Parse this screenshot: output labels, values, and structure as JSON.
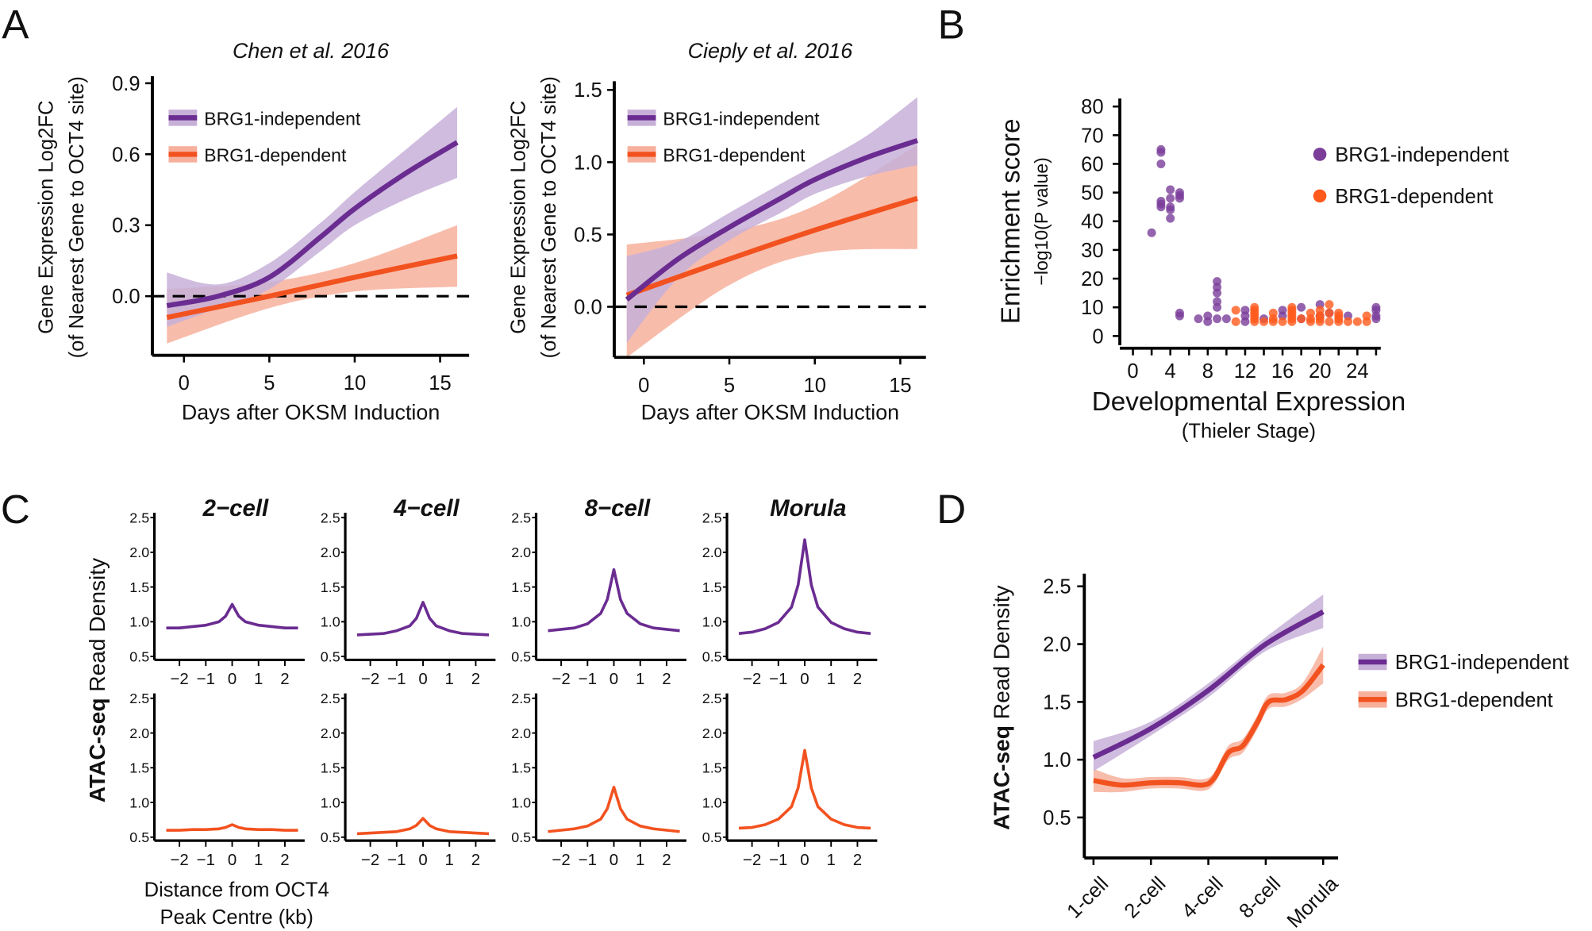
{
  "panel_letters": [
    "A",
    "B",
    "C",
    "D"
  ],
  "colors": {
    "independent": "#6a2c91",
    "independent_band": "#c7b0d8",
    "dependent": "#f2521f",
    "dependent_band": "#f7b09c",
    "independent_point": "#7a3d9a",
    "dependent_point": "#ff5a1c"
  },
  "chart_data": [
    {
      "id": "A-left",
      "type": "line",
      "title": "Chen et al. 2016",
      "xlabel": "Days after OKSM Induction",
      "ylabel": [
        "Gene Expression Log2FC",
        "(of Nearest Gene to OCT4 site)"
      ],
      "xticks": [
        0,
        5,
        10,
        15
      ],
      "yticks": [
        "0.0",
        "0.3",
        "0.6",
        "0.9"
      ],
      "xlim": [
        -1.85,
        16.7
      ],
      "ylim": [
        -0.25,
        0.93
      ],
      "reference_line": 0,
      "legend": "top-left",
      "series": [
        {
          "name": "BRG1-independent",
          "x": [
            -1,
            2,
            5,
            8,
            10,
            13,
            16
          ],
          "y": [
            -0.04,
            0.0,
            0.08,
            0.25,
            0.37,
            0.52,
            0.65
          ],
          "lower": [
            -0.13,
            -0.05,
            0.03,
            0.19,
            0.3,
            0.41,
            0.5
          ],
          "upper": [
            0.1,
            0.05,
            0.14,
            0.31,
            0.44,
            0.62,
            0.8
          ]
        },
        {
          "name": "BRG1-dependent",
          "x": [
            -1,
            5,
            10,
            16
          ],
          "y": [
            -0.09,
            0.0,
            0.08,
            0.17
          ],
          "lower": [
            -0.2,
            -0.05,
            0.02,
            0.04
          ],
          "upper": [
            0.03,
            0.06,
            0.14,
            0.3
          ]
        }
      ]
    },
    {
      "id": "A-right",
      "type": "line",
      "title": "Cieply et al. 2016",
      "xlabel": "Days after OKSM Induction",
      "ylabel": [
        "Gene Expression Log2FC",
        "(of Nearest Gene to OCT4 site)"
      ],
      "xticks": [
        0,
        5,
        10,
        15
      ],
      "yticks": [
        "0.0",
        "0.5",
        "1.0",
        "1.5"
      ],
      "xlim": [
        -1.73,
        16.5
      ],
      "ylim": [
        -0.35,
        1.56
      ],
      "reference_line": 0,
      "legend": "top-left",
      "series": [
        {
          "name": "BRG1-independent",
          "x": [
            -1,
            2,
            5,
            8,
            10,
            13,
            16
          ],
          "y": [
            0.05,
            0.33,
            0.55,
            0.75,
            0.88,
            1.03,
            1.15
          ],
          "lower": [
            -0.25,
            0.2,
            0.46,
            0.65,
            0.78,
            0.9,
            0.98
          ],
          "upper": [
            0.35,
            0.45,
            0.65,
            0.85,
            0.98,
            1.18,
            1.45
          ]
        },
        {
          "name": "BRG1-dependent",
          "x": [
            -1,
            5,
            10,
            16
          ],
          "y": [
            0.08,
            0.33,
            0.53,
            0.75
          ],
          "lower": [
            -0.35,
            0.15,
            0.37,
            0.4
          ],
          "upper": [
            0.43,
            0.52,
            0.7,
            1.12
          ]
        }
      ]
    },
    {
      "id": "B",
      "type": "scatter",
      "xlabel": "Developmental Expression",
      "xlabel_sub": "(Thieler Stage)",
      "ylabel": "Enrichment score",
      "ylabel_sub": "−log10(P value)",
      "xticks": [
        0,
        4,
        8,
        12,
        16,
        20,
        24
      ],
      "yticks": [
        0,
        10,
        20,
        30,
        40,
        50,
        60,
        70,
        80
      ],
      "xlim": [
        -1.4,
        26.5
      ],
      "ylim": [
        -3.2,
        82.8
      ],
      "legend": "right",
      "series": [
        {
          "name": "BRG1-independent",
          "points": [
            [
              2,
              36
            ],
            [
              3,
              65
            ],
            [
              3,
              64
            ],
            [
              3,
              60
            ],
            [
              3,
              47
            ],
            [
              3,
              46
            ],
            [
              3,
              45
            ],
            [
              4,
              51
            ],
            [
              4,
              48
            ],
            [
              4,
              45
            ],
            [
              4,
              44
            ],
            [
              4,
              41
            ],
            [
              5,
              50
            ],
            [
              5,
              49
            ],
            [
              5,
              48
            ],
            [
              5,
              8
            ],
            [
              5,
              7
            ],
            [
              7,
              6
            ],
            [
              8,
              7
            ],
            [
              8,
              5
            ],
            [
              9,
              19
            ],
            [
              9,
              17
            ],
            [
              9,
              15
            ],
            [
              9,
              12
            ],
            [
              9,
              10
            ],
            [
              9,
              6
            ],
            [
              10,
              6
            ],
            [
              12,
              9
            ],
            [
              12,
              7
            ],
            [
              12,
              5
            ],
            [
              14,
              6
            ],
            [
              16,
              9
            ],
            [
              16,
              7
            ],
            [
              18,
              10
            ],
            [
              18,
              6
            ],
            [
              20,
              11
            ],
            [
              20,
              7
            ],
            [
              21,
              8
            ],
            [
              23,
              7
            ],
            [
              26,
              10
            ],
            [
              26,
              9
            ],
            [
              26,
              7
            ],
            [
              26,
              6
            ]
          ]
        },
        {
          "name": "BRG1-dependent",
          "points": [
            [
              11,
              9
            ],
            [
              11,
              5
            ],
            [
              13,
              10
            ],
            [
              13,
              9
            ],
            [
              13,
              8
            ],
            [
              13,
              7
            ],
            [
              13,
              6
            ],
            [
              13,
              5
            ],
            [
              14,
              5
            ],
            [
              15,
              8
            ],
            [
              15,
              6
            ],
            [
              15,
              5
            ],
            [
              16,
              5
            ],
            [
              17,
              10
            ],
            [
              17,
              9
            ],
            [
              17,
              8
            ],
            [
              17,
              7
            ],
            [
              17,
              6
            ],
            [
              17,
              5
            ],
            [
              18,
              6
            ],
            [
              19,
              8
            ],
            [
              19,
              6
            ],
            [
              19,
              5
            ],
            [
              20,
              9
            ],
            [
              20,
              7
            ],
            [
              20,
              6
            ],
            [
              20,
              5
            ],
            [
              21,
              11
            ],
            [
              21,
              8
            ],
            [
              21,
              5
            ],
            [
              22,
              8
            ],
            [
              22,
              7
            ],
            [
              22,
              6
            ],
            [
              22,
              5
            ],
            [
              23,
              5
            ],
            [
              24,
              5
            ],
            [
              25,
              7
            ],
            [
              25,
              5
            ]
          ]
        }
      ]
    },
    {
      "id": "C",
      "type": "line",
      "ylabel_bold": "ATAC-seq",
      "ylabel": "Read Density",
      "xlabel": [
        "Distance from OCT4",
        "Peak Centre (kb)"
      ],
      "stages": [
        "2−cell",
        "4−cell",
        "8−cell",
        "Morula"
      ],
      "xticks": [
        "−2",
        "−1",
        "0",
        "1",
        "2"
      ],
      "xtick_values": [
        -2,
        -1,
        0,
        1,
        2
      ],
      "yticks": [
        "0.5",
        "1.0",
        "1.5",
        "2.0",
        "2.5"
      ],
      "xlim": [
        -2.95,
        2.75
      ],
      "ylim": [
        0.45,
        2.57
      ],
      "x": [
        -2.5,
        -2,
        -1.5,
        -1,
        -0.5,
        -0.25,
        0,
        0.25,
        0.5,
        1,
        1.5,
        2,
        2.5
      ],
      "independent": [
        [
          0.91,
          0.91,
          0.93,
          0.95,
          1.0,
          1.08,
          1.25,
          1.08,
          1.0,
          0.95,
          0.93,
          0.91,
          0.91
        ],
        [
          0.81,
          0.82,
          0.83,
          0.87,
          0.94,
          1.05,
          1.28,
          1.05,
          0.94,
          0.87,
          0.83,
          0.82,
          0.81
        ],
        [
          0.87,
          0.89,
          0.91,
          0.97,
          1.12,
          1.32,
          1.75,
          1.32,
          1.12,
          0.97,
          0.91,
          0.89,
          0.87
        ],
        [
          0.83,
          0.85,
          0.9,
          0.99,
          1.21,
          1.53,
          2.18,
          1.53,
          1.21,
          0.99,
          0.9,
          0.85,
          0.83
        ]
      ],
      "dependent": [
        [
          0.6,
          0.6,
          0.61,
          0.61,
          0.62,
          0.64,
          0.68,
          0.64,
          0.62,
          0.61,
          0.61,
          0.6,
          0.6
        ],
        [
          0.55,
          0.56,
          0.57,
          0.58,
          0.62,
          0.67,
          0.77,
          0.67,
          0.62,
          0.58,
          0.57,
          0.56,
          0.55
        ],
        [
          0.58,
          0.6,
          0.62,
          0.66,
          0.76,
          0.91,
          1.22,
          0.91,
          0.76,
          0.66,
          0.62,
          0.6,
          0.58
        ],
        [
          0.63,
          0.64,
          0.68,
          0.76,
          0.94,
          1.21,
          1.75,
          1.21,
          0.94,
          0.76,
          0.68,
          0.64,
          0.63
        ]
      ]
    },
    {
      "id": "D",
      "type": "line",
      "ylabel_bold": "ATAC-seq",
      "ylabel": "Read Density",
      "categories": [
        "1-cell",
        "2-cell",
        "4-cell",
        "8-cell",
        "Morula"
      ],
      "yticks": [
        "0.5",
        "1.0",
        "1.5",
        "2.0",
        "2.5"
      ],
      "xlim": [
        -0.16,
        4.26
      ],
      "ylim": [
        0.15,
        2.61
      ],
      "legend": "right",
      "series": [
        {
          "name": "BRG1-independent",
          "x": [
            0,
            1,
            2,
            3,
            4
          ],
          "y": [
            1.02,
            1.27,
            1.6,
            2.0,
            2.28
          ],
          "lower": [
            0.9,
            1.21,
            1.54,
            1.94,
            2.14
          ],
          "upper": [
            1.16,
            1.33,
            1.66,
            2.06,
            2.43
          ]
        },
        {
          "name": "BRG1-dependent",
          "x": [
            0,
            0.5,
            1,
            1.5,
            1.9,
            2.1,
            2.35,
            2.6,
            2.85,
            3.05,
            3.35,
            3.65,
            4
          ],
          "y": [
            0.82,
            0.78,
            0.8,
            0.8,
            0.78,
            0.84,
            1.06,
            1.12,
            1.32,
            1.5,
            1.52,
            1.6,
            1.82
          ],
          "lower": [
            0.72,
            0.72,
            0.75,
            0.75,
            0.73,
            0.79,
            1.0,
            1.06,
            1.26,
            1.44,
            1.46,
            1.53,
            1.66
          ],
          "upper": [
            0.92,
            0.84,
            0.85,
            0.85,
            0.83,
            0.89,
            1.12,
            1.18,
            1.38,
            1.56,
            1.58,
            1.67,
            1.98
          ]
        }
      ]
    }
  ]
}
